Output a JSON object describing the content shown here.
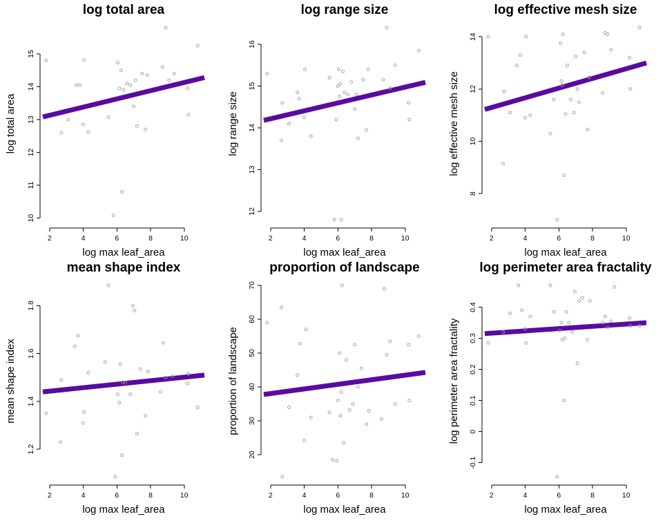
{
  "chart_data": [
    {
      "type": "scatter",
      "title": "log total area",
      "xlabel": "log max leaf_area",
      "ylabel": "log total area",
      "xlim": [
        1.6,
        11.2
      ],
      "ylim": [
        9.95,
        15.8
      ],
      "xticks": [
        2,
        4,
        6,
        8,
        10
      ],
      "yticks": [
        10,
        11,
        12,
        13,
        14,
        15
      ],
      "fit": {
        "x": [
          1.6,
          11.2
        ],
        "y": [
          13.08,
          14.28
        ]
      },
      "points": [
        [
          1.8,
          14.8
        ],
        [
          2.7,
          12.6
        ],
        [
          3.1,
          13.0
        ],
        [
          3.6,
          14.05
        ],
        [
          3.8,
          14.05
        ],
        [
          4.0,
          12.85
        ],
        [
          4.05,
          14.82
        ],
        [
          4.3,
          12.62
        ],
        [
          5.5,
          13.07
        ],
        [
          5.8,
          10.08
        ],
        [
          6.05,
          14.73
        ],
        [
          6.15,
          13.95
        ],
        [
          6.25,
          14.5
        ],
        [
          6.3,
          10.8
        ],
        [
          6.4,
          13.9
        ],
        [
          6.6,
          14.1
        ],
        [
          6.8,
          14.05
        ],
        [
          7.0,
          13.4
        ],
        [
          7.1,
          14.2
        ],
        [
          7.2,
          12.8
        ],
        [
          7.5,
          14.4
        ],
        [
          7.7,
          12.7
        ],
        [
          7.8,
          14.35
        ],
        [
          8.7,
          14.6
        ],
        [
          8.9,
          15.8
        ],
        [
          9.1,
          14.2
        ],
        [
          9.4,
          14.4
        ],
        [
          10.2,
          13.95
        ],
        [
          10.25,
          13.15
        ],
        [
          10.8,
          15.25
        ]
      ]
    },
    {
      "type": "scatter",
      "title": "log range size",
      "xlabel": "log max leaf_area",
      "ylabel": "log range size",
      "xlim": [
        1.6,
        11.2
      ],
      "ylim": [
        11.8,
        16.4
      ],
      "xticks": [
        2,
        4,
        6,
        8,
        10
      ],
      "yticks": [
        12,
        13,
        14,
        15,
        16
      ],
      "fit": {
        "x": [
          1.6,
          11.2
        ],
        "y": [
          14.18,
          15.09
        ]
      },
      "points": [
        [
          1.8,
          15.3
        ],
        [
          2.65,
          13.7
        ],
        [
          2.7,
          14.6
        ],
        [
          3.1,
          14.1
        ],
        [
          3.6,
          14.85
        ],
        [
          3.7,
          14.7
        ],
        [
          4.0,
          14.25
        ],
        [
          4.05,
          15.4
        ],
        [
          4.4,
          13.8
        ],
        [
          5.5,
          15.2
        ],
        [
          5.8,
          11.8
        ],
        [
          5.9,
          14.2
        ],
        [
          6.0,
          15.0
        ],
        [
          6.05,
          15.4
        ],
        [
          6.1,
          14.75
        ],
        [
          6.15,
          15.05
        ],
        [
          6.2,
          11.8
        ],
        [
          6.3,
          15.35
        ],
        [
          6.4,
          14.85
        ],
        [
          6.6,
          14.8
        ],
        [
          6.8,
          15.1
        ],
        [
          7.0,
          14.45
        ],
        [
          7.1,
          14.8
        ],
        [
          7.2,
          13.75
        ],
        [
          7.5,
          15.15
        ],
        [
          7.7,
          13.95
        ],
        [
          7.8,
          15.4
        ],
        [
          8.7,
          15.15
        ],
        [
          8.9,
          16.4
        ],
        [
          9.1,
          14.95
        ],
        [
          9.4,
          15.5
        ],
        [
          10.2,
          14.6
        ],
        [
          10.25,
          14.2
        ],
        [
          10.8,
          15.85
        ]
      ]
    },
    {
      "type": "scatter",
      "title": "log effective mesh size",
      "xlabel": "log max leaf_area",
      "ylabel": "log effective mesh size",
      "xlim": [
        1.6,
        11.2
      ],
      "ylim": [
        7.0,
        14.35
      ],
      "xticks": [
        2,
        4,
        6,
        8,
        10
      ],
      "yticks": [
        8,
        10,
        12,
        14
      ],
      "fit": {
        "x": [
          1.6,
          11.2
        ],
        "y": [
          11.22,
          13.0
        ]
      },
      "points": [
        [
          1.8,
          14.0
        ],
        [
          2.7,
          9.15
        ],
        [
          2.75,
          11.9
        ],
        [
          3.1,
          11.1
        ],
        [
          3.5,
          12.9
        ],
        [
          3.7,
          13.3
        ],
        [
          4.05,
          14.0
        ],
        [
          4.0,
          10.9
        ],
        [
          4.3,
          11.0
        ],
        [
          5.5,
          10.3
        ],
        [
          5.7,
          11.6
        ],
        [
          5.9,
          7.0
        ],
        [
          6.1,
          13.75
        ],
        [
          6.15,
          12.3
        ],
        [
          6.2,
          12.15
        ],
        [
          6.25,
          14.1
        ],
        [
          6.3,
          8.7
        ],
        [
          6.4,
          11.05
        ],
        [
          6.5,
          12.9
        ],
        [
          6.7,
          11.6
        ],
        [
          6.9,
          11.1
        ],
        [
          7.0,
          13.25
        ],
        [
          7.1,
          12.0
        ],
        [
          7.2,
          11.5
        ],
        [
          7.5,
          13.4
        ],
        [
          7.7,
          10.45
        ],
        [
          7.8,
          12.45
        ],
        [
          8.6,
          11.85
        ],
        [
          8.75,
          14.15
        ],
        [
          8.9,
          14.1
        ],
        [
          9.1,
          13.5
        ],
        [
          10.2,
          13.2
        ],
        [
          10.25,
          12.0
        ],
        [
          10.8,
          14.35
        ]
      ]
    },
    {
      "type": "scatter",
      "title": "mean shape index",
      "xlabel": "log max leaf_area",
      "ylabel": "mean shape index",
      "xlim": [
        1.6,
        11.2
      ],
      "ylim": [
        1.085,
        1.885
      ],
      "xticks": [
        2,
        4,
        6,
        8,
        10
      ],
      "yticks": [
        1.2,
        1.4,
        1.6,
        1.8
      ],
      "fit": {
        "x": [
          1.6,
          11.2
        ],
        "y": [
          1.44,
          1.51
        ]
      },
      "points": [
        [
          1.8,
          1.35
        ],
        [
          2.65,
          1.23
        ],
        [
          2.7,
          1.49
        ],
        [
          3.5,
          1.63
        ],
        [
          3.7,
          1.675
        ],
        [
          4.0,
          1.31
        ],
        [
          4.05,
          1.355
        ],
        [
          4.3,
          1.52
        ],
        [
          5.3,
          1.565
        ],
        [
          5.5,
          1.885
        ],
        [
          5.9,
          1.085
        ],
        [
          6.05,
          1.43
        ],
        [
          6.15,
          1.395
        ],
        [
          6.2,
          1.555
        ],
        [
          6.3,
          1.175
        ],
        [
          6.35,
          1.48
        ],
        [
          6.5,
          1.48
        ],
        [
          6.8,
          1.43
        ],
        [
          6.95,
          1.8
        ],
        [
          7.05,
          1.78
        ],
        [
          7.2,
          1.265
        ],
        [
          7.4,
          1.535
        ],
        [
          7.7,
          1.34
        ],
        [
          7.85,
          1.525
        ],
        [
          8.6,
          1.44
        ],
        [
          8.75,
          1.645
        ],
        [
          8.9,
          1.5
        ],
        [
          9.3,
          1.505
        ],
        [
          10.2,
          1.475
        ],
        [
          10.25,
          1.515
        ],
        [
          10.8,
          1.375
        ]
      ]
    },
    {
      "type": "scatter",
      "title": "proportion of landscape",
      "xlabel": "log max leaf_area",
      "ylabel": "proportion of landscape",
      "xlim": [
        1.6,
        11.2
      ],
      "ylim": [
        13.5,
        70.0
      ],
      "xticks": [
        2,
        4,
        6,
        8,
        10
      ],
      "yticks": [
        20,
        30,
        40,
        50,
        60,
        70
      ],
      "fit": {
        "x": [
          1.6,
          11.2
        ],
        "y": [
          37.8,
          44.3
        ]
      },
      "points": [
        [
          1.8,
          59.0
        ],
        [
          2.65,
          63.5
        ],
        [
          2.7,
          13.5
        ],
        [
          3.1,
          34.0
        ],
        [
          3.6,
          43.5
        ],
        [
          3.75,
          52.8
        ],
        [
          4.0,
          24.2
        ],
        [
          4.1,
          57.0
        ],
        [
          4.4,
          31.0
        ],
        [
          5.5,
          32.5
        ],
        [
          5.7,
          18.5
        ],
        [
          5.95,
          18.2
        ],
        [
          6.0,
          36.0
        ],
        [
          6.1,
          50.0
        ],
        [
          6.15,
          31.5
        ],
        [
          6.2,
          38.5
        ],
        [
          6.25,
          70.0
        ],
        [
          6.35,
          23.5
        ],
        [
          6.5,
          48.0
        ],
        [
          6.7,
          33.2
        ],
        [
          6.9,
          35.0
        ],
        [
          7.0,
          52.5
        ],
        [
          7.2,
          40.0
        ],
        [
          7.4,
          45.5
        ],
        [
          7.7,
          29.0
        ],
        [
          7.85,
          33.0
        ],
        [
          8.6,
          30.5
        ],
        [
          8.75,
          69.0
        ],
        [
          8.9,
          49.5
        ],
        [
          9.1,
          53.5
        ],
        [
          9.4,
          35.0
        ],
        [
          10.2,
          52.5
        ],
        [
          10.25,
          36.0
        ],
        [
          10.8,
          55.0
        ]
      ]
    },
    {
      "type": "scatter",
      "title": "log perimeter area fractality",
      "xlabel": "log max leaf_area",
      "ylabel": "log perimeter area fractality",
      "xlim": [
        1.6,
        11.2
      ],
      "ylim": [
        -0.145,
        0.47
      ],
      "xticks": [
        2,
        4,
        6,
        8,
        10
      ],
      "yticks": [
        -0.1,
        0.0,
        0.1,
        0.2,
        0.3,
        0.4
      ],
      "fit": {
        "x": [
          1.6,
          11.2
        ],
        "y": [
          0.315,
          0.35
        ]
      },
      "points": [
        [
          1.8,
          0.285
        ],
        [
          2.7,
          0.32
        ],
        [
          3.1,
          0.38
        ],
        [
          3.6,
          0.47
        ],
        [
          3.8,
          0.39
        ],
        [
          4.0,
          0.33
        ],
        [
          4.05,
          0.285
        ],
        [
          4.3,
          0.37
        ],
        [
          5.5,
          0.47
        ],
        [
          5.7,
          0.385
        ],
        [
          5.9,
          -0.145
        ],
        [
          6.05,
          0.325
        ],
        [
          6.15,
          0.35
        ],
        [
          6.2,
          0.295
        ],
        [
          6.3,
          0.1
        ],
        [
          6.35,
          0.3
        ],
        [
          6.45,
          0.385
        ],
        [
          6.6,
          0.35
        ],
        [
          6.8,
          0.32
        ],
        [
          6.95,
          0.45
        ],
        [
          7.1,
          0.22
        ],
        [
          7.2,
          0.42
        ],
        [
          7.4,
          0.43
        ],
        [
          7.7,
          0.295
        ],
        [
          7.85,
          0.42
        ],
        [
          8.6,
          0.35
        ],
        [
          8.75,
          0.37
        ],
        [
          8.9,
          0.335
        ],
        [
          9.1,
          0.355
        ],
        [
          9.3,
          0.465
        ],
        [
          10.2,
          0.365
        ],
        [
          10.25,
          0.34
        ],
        [
          10.8,
          0.34
        ]
      ]
    }
  ]
}
